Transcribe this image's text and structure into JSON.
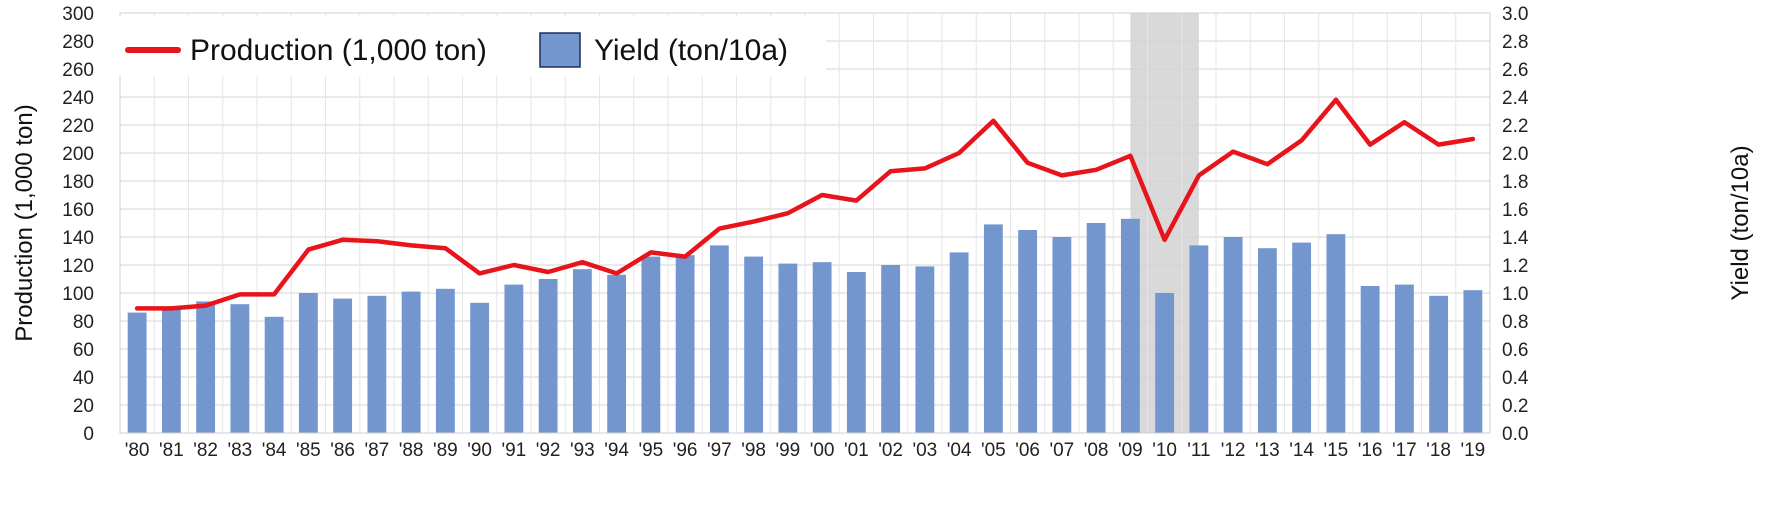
{
  "chart_data": {
    "type": "bar+line",
    "title": "",
    "ylabel_left": "Production (1,000 ton)",
    "ylabel_right": "Yield (ton/10a)",
    "ylim_left": [
      0,
      300
    ],
    "ylim_right": [
      0,
      3.0
    ],
    "yticks_left": [
      "0",
      "20",
      "40",
      "60",
      "80",
      "100",
      "120",
      "140",
      "160",
      "180",
      "200",
      "220",
      "240",
      "260",
      "280",
      "300"
    ],
    "yticks_right": [
      "0.0",
      "0.2",
      "0.4",
      "0.6",
      "0.8",
      "1.0",
      "1.2",
      "1.4",
      "1.6",
      "1.8",
      "2.0",
      "2.2",
      "2.4",
      "2.6",
      "2.8",
      "3.0"
    ],
    "grid": true,
    "legend_position": "top-left",
    "categories": [
      "'80",
      "'81",
      "'82",
      "'83",
      "'84",
      "'85",
      "'86",
      "'87",
      "'88",
      "'89",
      "'90",
      "'91",
      "'92",
      "'93",
      "'94",
      "'95",
      "'96",
      "'97",
      "'98",
      "'99",
      "'00",
      "'01",
      "'02",
      "'03",
      "'04",
      "'05",
      "'06",
      "'07",
      "'08",
      "'09",
      "'10",
      "'11",
      "'12",
      "'13",
      "'14",
      "'15",
      "'16",
      "'17",
      "'18",
      "'19"
    ],
    "highlight_category": "'10",
    "series": [
      {
        "name": "Production (1,000 ton)",
        "type": "line",
        "axis": "left",
        "color": "#e8141b",
        "values": [
          89,
          89,
          91,
          99,
          99,
          131,
          138,
          137,
          134,
          132,
          114,
          120,
          115,
          122,
          114,
          129,
          126,
          146,
          151,
          157,
          170,
          166,
          187,
          189,
          200,
          223,
          193,
          184,
          188,
          198,
          138,
          184,
          201,
          192,
          209,
          238,
          206,
          222,
          206,
          210
        ]
      },
      {
        "name": "Yield (ton/10a)",
        "type": "bar",
        "axis": "right",
        "color": "#7496cf",
        "values": [
          0.86,
          0.88,
          0.94,
          0.92,
          0.83,
          1.0,
          0.96,
          0.98,
          1.01,
          1.03,
          0.93,
          1.06,
          1.1,
          1.17,
          1.13,
          1.26,
          1.27,
          1.34,
          1.26,
          1.21,
          1.22,
          1.15,
          1.2,
          1.19,
          1.29,
          1.49,
          1.45,
          1.4,
          1.5,
          1.53,
          1.0,
          1.34,
          1.4,
          1.32,
          1.36,
          1.42,
          1.05,
          1.06,
          0.98,
          1.02
        ]
      }
    ]
  }
}
